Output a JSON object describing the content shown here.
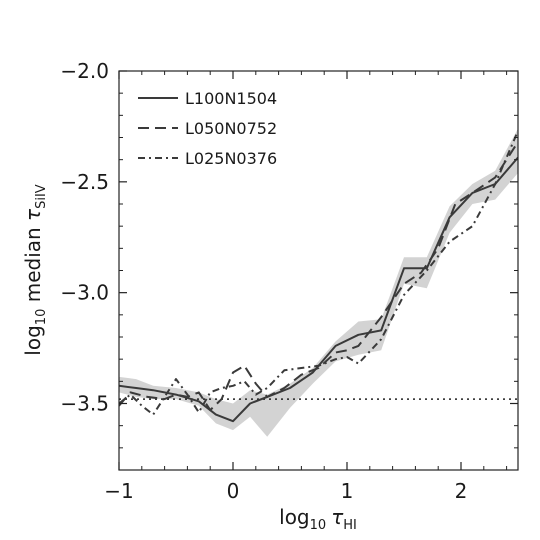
{
  "chart_data": {
    "type": "line",
    "title": "",
    "xlabel": {
      "prefix": "log",
      "sub": "10",
      "symbol": "τ",
      "symbol_sub": "HI"
    },
    "ylabel": {
      "prefix": "log",
      "sub": "10",
      "text": " median ",
      "symbol": "τ",
      "symbol_sub": "SiIV"
    },
    "xlim": [
      -1.0,
      2.5
    ],
    "ylim": [
      -3.8,
      -2.0
    ],
    "xticks": [
      {
        "value": -1,
        "label": "−1"
      },
      {
        "value": 0,
        "label": "0"
      },
      {
        "value": 1,
        "label": "1"
      },
      {
        "value": 2,
        "label": "2"
      }
    ],
    "yticks": [
      {
        "value": -2.0,
        "label": "−2.0"
      },
      {
        "value": -2.5,
        "label": "−2.5"
      },
      {
        "value": -3.0,
        "label": "−3.0"
      },
      {
        "value": -3.5,
        "label": "−3.5"
      }
    ],
    "grid": false,
    "legend_position": "top-left",
    "reference_line": {
      "y": -3.48,
      "style": "dotted"
    },
    "shaded_band": {
      "color": "#d3d3d3",
      "x": [
        -1.0,
        -0.85,
        -0.7,
        -0.5,
        -0.3,
        -0.15,
        0.0,
        0.15,
        0.3,
        0.5,
        0.7,
        0.9,
        1.1,
        1.3,
        1.5,
        1.7,
        1.9,
        2.1,
        2.3,
        2.5
      ],
      "upper": [
        -3.38,
        -3.39,
        -3.42,
        -3.43,
        -3.45,
        -3.48,
        -3.5,
        -3.44,
        -3.46,
        -3.41,
        -3.34,
        -3.22,
        -3.13,
        -3.12,
        -2.84,
        -2.84,
        -2.61,
        -2.51,
        -2.45,
        -2.26
      ],
      "lower": [
        -3.45,
        -3.47,
        -3.48,
        -3.48,
        -3.51,
        -3.59,
        -3.62,
        -3.56,
        -3.65,
        -3.52,
        -3.41,
        -3.31,
        -3.28,
        -3.26,
        -2.96,
        -2.98,
        -2.73,
        -2.6,
        -2.58,
        -2.46
      ]
    },
    "series": [
      {
        "name": "L100N1504",
        "style": "solid",
        "color": "#3a3a3a",
        "x": [
          -1.0,
          -0.85,
          -0.7,
          -0.5,
          -0.3,
          -0.15,
          0.0,
          0.15,
          0.3,
          0.5,
          0.7,
          0.9,
          1.1,
          1.3,
          1.5,
          1.7,
          1.9,
          2.1,
          2.3,
          2.5
        ],
        "y": [
          -3.42,
          -3.43,
          -3.44,
          -3.46,
          -3.49,
          -3.55,
          -3.58,
          -3.5,
          -3.47,
          -3.43,
          -3.36,
          -3.24,
          -3.19,
          -3.17,
          -2.89,
          -2.89,
          -2.66,
          -2.55,
          -2.51,
          -2.39
        ]
      },
      {
        "name": "L050N0752",
        "style": "dashed",
        "color": "#3a3a3a",
        "x": [
          -1.0,
          -0.9,
          -0.75,
          -0.6,
          -0.5,
          -0.4,
          -0.3,
          -0.2,
          -0.1,
          0.0,
          0.1,
          0.2,
          0.3,
          0.45,
          0.6,
          0.75,
          0.9,
          1.0,
          1.1,
          1.3,
          1.5,
          1.65,
          1.8,
          1.95,
          2.1,
          2.3,
          2.5
        ],
        "y": [
          -3.51,
          -3.45,
          -3.47,
          -3.48,
          -3.46,
          -3.47,
          -3.45,
          -3.53,
          -3.48,
          -3.36,
          -3.33,
          -3.41,
          -3.47,
          -3.43,
          -3.37,
          -3.34,
          -3.27,
          -3.26,
          -3.24,
          -3.11,
          -2.96,
          -2.91,
          -2.8,
          -2.6,
          -2.55,
          -2.48,
          -2.32
        ]
      },
      {
        "name": "L025N0376",
        "style": "dashdot",
        "color": "#3a3a3a",
        "x": [
          -1.0,
          -0.9,
          -0.8,
          -0.7,
          -0.6,
          -0.5,
          -0.4,
          -0.3,
          -0.2,
          -0.1,
          0.0,
          0.1,
          0.2,
          0.3,
          0.45,
          0.6,
          0.75,
          0.9,
          1.0,
          1.1,
          1.3,
          1.5,
          1.7,
          1.9,
          2.1,
          2.3,
          2.5
        ],
        "y": [
          -3.5,
          -3.46,
          -3.51,
          -3.55,
          -3.47,
          -3.39,
          -3.46,
          -3.54,
          -3.45,
          -3.43,
          -3.42,
          -3.4,
          -3.46,
          -3.43,
          -3.35,
          -3.34,
          -3.33,
          -3.3,
          -3.29,
          -3.32,
          -3.21,
          -3.01,
          -2.9,
          -2.77,
          -2.7,
          -2.51,
          -2.27
        ]
      }
    ]
  }
}
